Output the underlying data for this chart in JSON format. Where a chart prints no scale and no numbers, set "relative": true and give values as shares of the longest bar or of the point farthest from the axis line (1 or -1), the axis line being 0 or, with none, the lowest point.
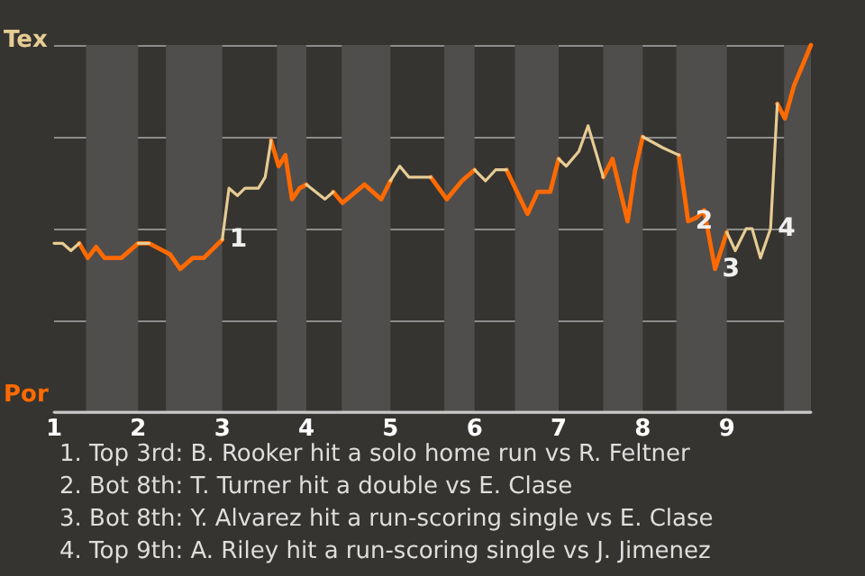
{
  "chart_data": {
    "type": "line",
    "relative": true,
    "grid": "y",
    "x": [
      1,
      1.1,
      1.2,
      1.3,
      1.4,
      1.5,
      1.6,
      1.8,
      2,
      2.13,
      2.38,
      2.5,
      2.65,
      2.78,
      3,
      3.08,
      3.18,
      3.27,
      3.43,
      3.51,
      3.58,
      3.67,
      3.75,
      3.83,
      3.92,
      4,
      4.22,
      4.32,
      4.43,
      4.69,
      4.89,
      5,
      5.11,
      5.22,
      5.48,
      5.67,
      5.85,
      6,
      6.13,
      6.25,
      6.38,
      6.63,
      6.75,
      6.9,
      7,
      7.09,
      7.24,
      7.35,
      7.53,
      7.64,
      7.82,
      7.91,
      8,
      8.24,
      8.43,
      8.54,
      8.64,
      8.73,
      8.86,
      9,
      9.1,
      9.23,
      9.3,
      9.4,
      9.52,
      9.6,
      9.69,
      9.8,
      10
    ],
    "xlim": [
      1,
      10
    ],
    "xticks": [
      1,
      2,
      3,
      4,
      5,
      6,
      7,
      8,
      9
    ],
    "series": [
      {
        "name": "Tex",
        "color": "#e6cc94",
        "values": [
          0.46,
          0.46,
          0.44,
          0.46,
          null,
          null,
          null,
          null,
          0.46,
          0.46,
          null,
          null,
          null,
          null,
          0.47,
          0.61,
          0.59,
          0.61,
          0.61,
          0.64,
          0.74,
          null,
          null,
          null,
          null,
          0.62,
          0.58,
          0.6,
          null,
          null,
          null,
          0.63,
          0.67,
          0.64,
          0.64,
          null,
          null,
          0.66,
          0.63,
          0.66,
          0.66,
          null,
          null,
          null,
          0.69,
          0.67,
          0.71,
          0.78,
          0.64,
          null,
          null,
          null,
          0.75,
          0.72,
          0.7,
          null,
          null,
          null,
          null,
          0.49,
          0.44,
          0.5,
          0.5,
          0.42,
          0.5,
          0.84,
          null,
          null,
          null
        ]
      },
      {
        "name": "Por",
        "color": "#ff6a00",
        "values": [
          null,
          null,
          null,
          0.46,
          0.42,
          0.45,
          0.42,
          0.42,
          0.46,
          0.46,
          0.43,
          0.39,
          0.42,
          0.42,
          0.47,
          null,
          null,
          null,
          null,
          null,
          0.74,
          0.67,
          0.7,
          0.58,
          0.61,
          0.62,
          null,
          0.6,
          0.57,
          0.62,
          0.58,
          0.63,
          null,
          null,
          0.64,
          0.58,
          0.63,
          0.66,
          null,
          null,
          0.66,
          0.54,
          0.6,
          0.6,
          0.69,
          null,
          null,
          null,
          0.64,
          0.69,
          0.52,
          0.66,
          0.75,
          null,
          0.7,
          0.52,
          0.53,
          0.55,
          0.39,
          0.49,
          null,
          null,
          null,
          null,
          null,
          0.84,
          0.8,
          0.89,
          1
        ]
      }
    ],
    "bands": [
      {
        "axis": "x",
        "from": 1.38,
        "to": 2,
        "color": "#4f4e4c"
      },
      {
        "axis": "x",
        "from": 2.33,
        "to": 3,
        "color": "#4f4e4c"
      },
      {
        "axis": "x",
        "from": 3.65,
        "to": 4,
        "color": "#4f4e4c"
      },
      {
        "axis": "x",
        "from": 4.42,
        "to": 5,
        "color": "#4f4e4c"
      },
      {
        "axis": "x",
        "from": 5.64,
        "to": 6,
        "color": "#4f4e4c"
      },
      {
        "axis": "x",
        "from": 6.48,
        "to": 7,
        "color": "#4f4e4c"
      },
      {
        "axis": "x",
        "from": 7.53,
        "to": 8,
        "color": "#4f4e4c"
      },
      {
        "axis": "x",
        "from": 8.4,
        "to": 9,
        "color": "#4f4e4c"
      },
      {
        "axis": "x",
        "from": 9.68,
        "to": 10,
        "color": "#4f4e4c"
      }
    ],
    "annotations": [
      {
        "text": "1",
        "x": 3,
        "y": 0.47
      },
      {
        "text": "2",
        "x": 8.54,
        "y": 0.52
      },
      {
        "text": "3",
        "x": 8.86,
        "y": 0.39
      },
      {
        "text": "4",
        "x": 9.52,
        "y": 0.5
      },
      "1. Top 3rd: B. Rooker hit a solo home run vs R. Feltner",
      "2. Bot 8th: T. Turner hit a double vs E. Clase",
      "3. Bot 8th: Y. Alvarez hit a run-scoring single vs E. Clase",
      "4. Top 9th: A. Riley hit a run-scoring single vs J. Jimenez"
    ]
  }
}
